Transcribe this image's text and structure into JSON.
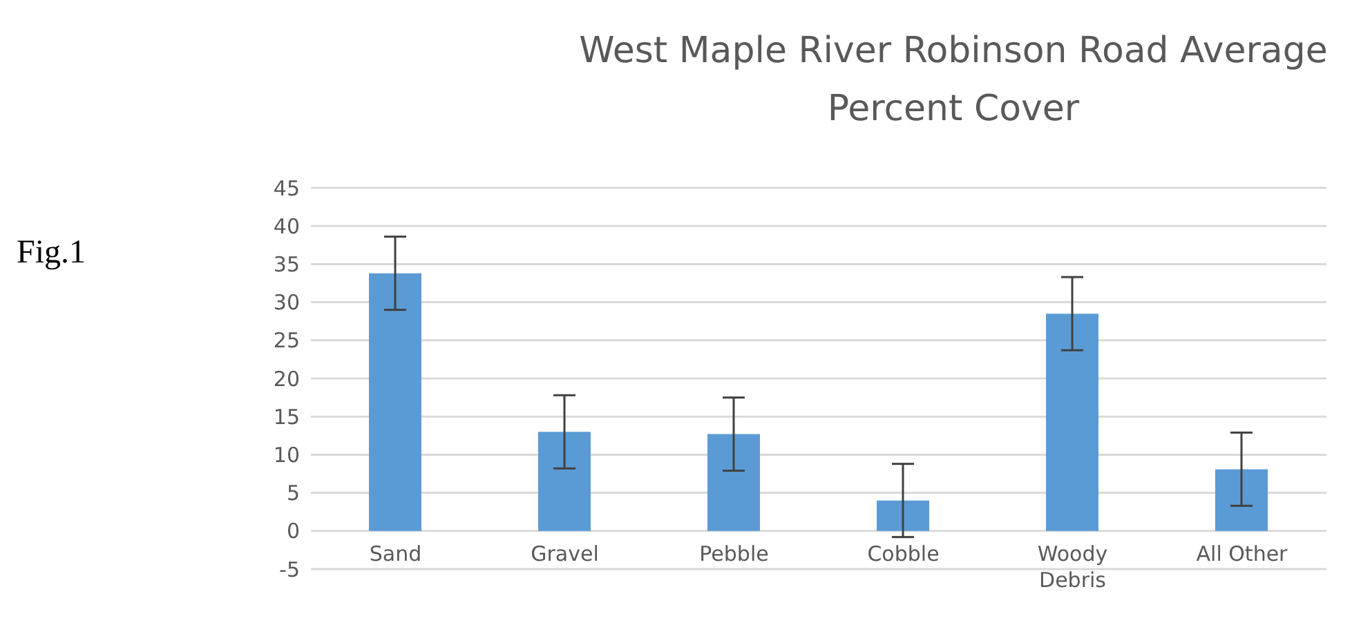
{
  "chart_data": {
    "type": "bar",
    "title": "West Maple River Robinson Road Average Percent Cover",
    "categories": [
      "Sand",
      "Gravel",
      "Pebble",
      "Cobble",
      "Woody Debris",
      "All Other"
    ],
    "values": [
      33.8,
      13.0,
      12.7,
      4.0,
      28.5,
      8.1
    ],
    "errors": [
      4.8,
      4.8,
      4.8,
      4.8,
      4.8,
      4.8
    ],
    "color": "#5b9bd5",
    "ylim": [
      -5,
      45
    ],
    "yticks": [
      -5,
      0,
      5,
      10,
      15,
      20,
      25,
      30,
      35,
      40,
      45
    ],
    "grid": "y",
    "annotations": [
      "Fig.1"
    ]
  }
}
